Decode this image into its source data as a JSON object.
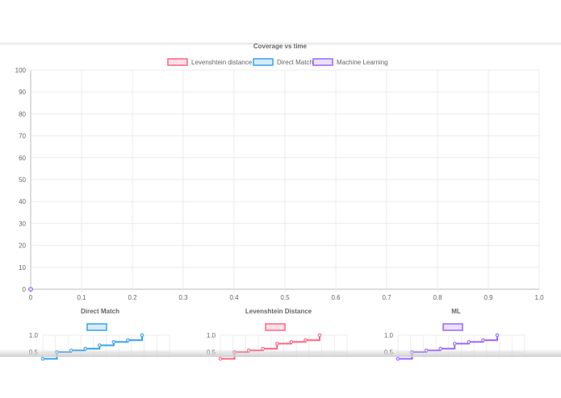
{
  "main_chart": {
    "chart_data": {
      "type": "line",
      "title": "Coverage vs time",
      "legend_position": "top",
      "grid": true,
      "xlim": [
        0,
        1
      ],
      "ylim": [
        0,
        100
      ],
      "x_ticks": [
        "0",
        "0.1",
        "0.2",
        "0.3",
        "0.4",
        "0.5",
        "0.6",
        "0.7",
        "0.8",
        "0.9",
        "1.0"
      ],
      "y_ticks": [
        "0",
        "10",
        "20",
        "30",
        "40",
        "50",
        "60",
        "70",
        "80",
        "90",
        "100"
      ],
      "series": [
        {
          "name": "Levenshtein distance",
          "color": "#ff6384",
          "fill": "#ffe0e6",
          "x": [
            0
          ],
          "y": [
            0
          ]
        },
        {
          "name": "Direct Match",
          "color": "#36a2eb",
          "fill": "#d7ecfb",
          "x": [
            0
          ],
          "y": [
            0
          ]
        },
        {
          "name": "Machine Learning",
          "color": "#9966ff",
          "fill": "#ebe0ff",
          "x": [
            0
          ],
          "y": [
            0
          ]
        }
      ]
    }
  },
  "small_charts": [
    {
      "chart_data": {
        "type": "line",
        "title": "Direct Match",
        "stepped": true,
        "color": "#36a2eb",
        "fill": "#d7ecfb",
        "y_ticks": [
          "1.0",
          "0.5"
        ],
        "ylim": [
          0,
          1
        ],
        "x": [
          0,
          1,
          2,
          3,
          4,
          5,
          6,
          7
        ],
        "y": [
          0.3,
          0.5,
          0.55,
          0.6,
          0.7,
          0.8,
          0.85,
          1.0
        ]
      }
    },
    {
      "chart_data": {
        "type": "line",
        "title": "Levenshtein Distance",
        "stepped": true,
        "color": "#ff6384",
        "fill": "#ffe0e6",
        "y_ticks": [
          "1.0",
          "0.5"
        ],
        "ylim": [
          0,
          1
        ],
        "x": [
          0,
          1,
          2,
          3,
          4,
          5,
          6,
          7
        ],
        "y": [
          0.3,
          0.5,
          0.55,
          0.6,
          0.75,
          0.8,
          0.85,
          1.0
        ]
      }
    },
    {
      "chart_data": {
        "type": "line",
        "title": "ML",
        "stepped": true,
        "color": "#9966ff",
        "fill": "#ebe0ff",
        "y_ticks": [
          "1.0",
          "0.5"
        ],
        "ylim": [
          0,
          1
        ],
        "x": [
          0,
          1,
          2,
          3,
          4,
          5,
          6,
          7
        ],
        "y": [
          0.3,
          0.5,
          0.55,
          0.6,
          0.75,
          0.8,
          0.85,
          1.0
        ]
      }
    }
  ]
}
